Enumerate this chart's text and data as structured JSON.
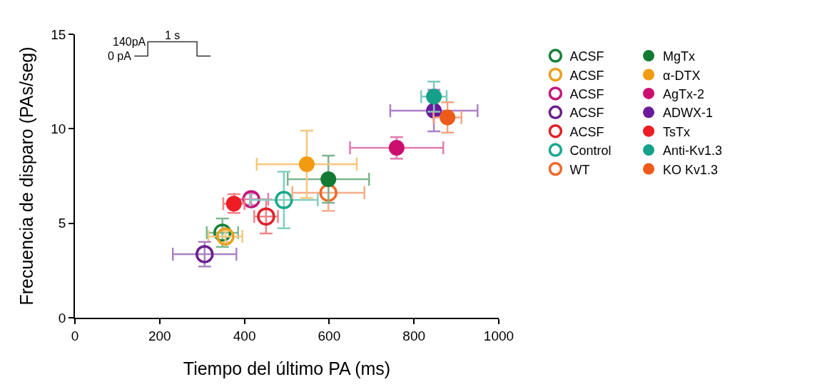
{
  "chart_data": {
    "type": "scatter",
    "xlabel": "Tiempo del último PA (ms)",
    "ylabel": "Frecuencia de disparo (PAs/seg)",
    "xlim": [
      0,
      1000
    ],
    "xticks": [
      0,
      200,
      400,
      600,
      800,
      1000
    ],
    "ylim": [
      0,
      15
    ],
    "yticks": [
      0,
      5,
      10,
      15
    ],
    "legend": "right",
    "annotations": [
      "140pA",
      "0 pA",
      "1 s"
    ],
    "series": [
      {
        "name": "ACSF",
        "color": "#16803a",
        "marker": "circle-open",
        "x": [
          348
        ],
        "values": [
          4.5
        ],
        "errors": [
          0.75
        ],
        "xerrors": [
          37
        ]
      },
      {
        "name": "ACSF",
        "color": "#e8a020",
        "marker": "circle-open",
        "x": [
          355
        ],
        "values": [
          4.3
        ],
        "errors": [
          0.3
        ],
        "xerrors": [
          40
        ]
      },
      {
        "name": "ACSF",
        "color": "#c4177a",
        "marker": "circle-open",
        "x": [
          416
        ],
        "values": [
          6.27
        ],
        "errors": [
          0.3
        ],
        "xerrors": [
          40
        ]
      },
      {
        "name": "ACSF",
        "color": "#6a1f8e",
        "marker": "circle-open",
        "x": [
          306
        ],
        "values": [
          3.36
        ],
        "errors": [
          0.65
        ],
        "xerrors": [
          75
        ]
      },
      {
        "name": "ACSF",
        "color": "#e0202a",
        "marker": "circle-open",
        "x": [
          451
        ],
        "values": [
          5.36
        ],
        "errors": [
          0.9
        ],
        "xerrors": [
          28
        ]
      },
      {
        "name": "Control",
        "color": "#1aa88c",
        "marker": "circle-open",
        "x": [
          493
        ],
        "values": [
          6.23
        ],
        "errors": [
          1.5
        ],
        "xerrors": [
          80
        ]
      },
      {
        "name": "WT",
        "color": "#ee6a2a",
        "marker": "circle-open",
        "x": [
          598
        ],
        "values": [
          6.61
        ],
        "errors": [
          0.95
        ],
        "xerrors": [
          85
        ]
      },
      {
        "name": "MgTx",
        "color": "#117a33",
        "marker": "circle",
        "x": [
          598
        ],
        "values": [
          7.33
        ],
        "errors": [
          1.25
        ],
        "xerrors": [
          96
        ]
      },
      {
        "name": "α-DTX",
        "color": "#f29a10",
        "marker": "circle",
        "x": [
          547
        ],
        "values": [
          8.12
        ],
        "errors": [
          1.78
        ],
        "xerrors": [
          118
        ]
      },
      {
        "name": "AgTx-2",
        "color": "#cc0f6e",
        "marker": "circle",
        "x": [
          759
        ],
        "values": [
          8.99
        ],
        "errors": [
          0.57
        ],
        "xerrors": [
          110
        ]
      },
      {
        "name": "ADWX-1",
        "color": "#6a1a9a",
        "marker": "circle",
        "x": [
          847
        ],
        "values": [
          10.96
        ],
        "errors": [
          1.1
        ],
        "xerrors": [
          103
        ]
      },
      {
        "name": "TsTx",
        "color": "#ee1c24",
        "marker": "circle",
        "x": [
          375
        ],
        "values": [
          6.04
        ],
        "errors": [
          0.5
        ],
        "xerrors": [
          25
        ]
      },
      {
        "name": "Anti-Kv1.3",
        "color": "#15a08a",
        "marker": "circle",
        "x": [
          847
        ],
        "values": [
          11.7
        ],
        "errors": [
          0.8
        ],
        "xerrors": [
          30
        ]
      },
      {
        "name": "KO Kv1.3",
        "color": "#ee5a1a",
        "marker": "circle",
        "x": [
          879
        ],
        "values": [
          10.6
        ],
        "errors": [
          0.8
        ],
        "xerrors": [
          33
        ]
      }
    ]
  }
}
